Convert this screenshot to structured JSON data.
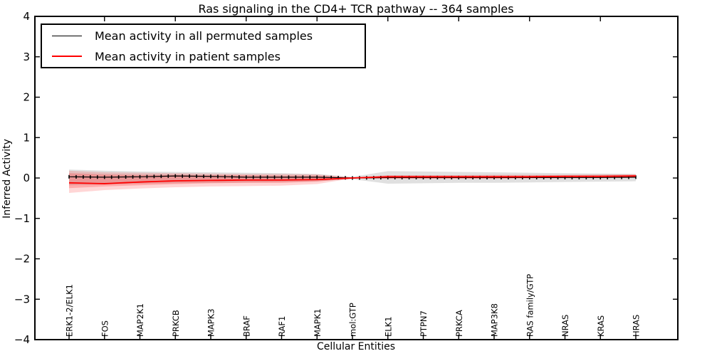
{
  "chart_data": {
    "type": "line",
    "title": "Ras signaling in the CD4+ TCR pathway -- 364 samples",
    "xlabel": "Cellular Entities",
    "ylabel": "Inferred Activity",
    "ylim": [
      -4,
      4
    ],
    "yticks": [
      4,
      3,
      2,
      1,
      0,
      -1,
      -2,
      -3,
      -4
    ],
    "grid": false,
    "n_points": 81,
    "label_every": 5,
    "categories": [
      "ERK1-2/ELK1",
      "FOS",
      "MAP2K1",
      "PRKCB",
      "MAPK3",
      "BRAF",
      "RAF1",
      "MAPK1",
      "mol:GTP",
      "ELK1",
      "PTPN7",
      "PRKCA",
      "MAP3K8",
      "RAS family/GTP",
      "NRAS",
      "KRAS",
      "HRAS"
    ],
    "series": [
      {
        "name": "Mean activity in all permuted samples",
        "color": "#000000",
        "marker": "vertical-dash",
        "values": [
          0.03,
          0.02,
          0.03,
          0.05,
          0.04,
          0.02,
          0.02,
          0.02,
          0.0,
          0.01,
          0.01,
          0.01,
          0.01,
          0.01,
          0.01,
          0.01,
          0.02
        ]
      },
      {
        "name": "Mean activity in patient samples",
        "color": "#ff0000",
        "marker": "none",
        "values": [
          -0.12,
          -0.14,
          -0.1,
          -0.07,
          -0.06,
          -0.05,
          -0.05,
          -0.04,
          0.0,
          0.03,
          0.03,
          0.03,
          0.03,
          0.03,
          0.04,
          0.04,
          0.05
        ]
      }
    ],
    "bands": [
      {
        "name": "permuted-samples-range",
        "color": "rgba(0,0,0,0.12)",
        "upper": [
          0.21,
          0.18,
          0.16,
          0.15,
          0.14,
          0.13,
          0.12,
          0.1,
          0.03,
          0.17,
          0.16,
          0.15,
          0.14,
          0.13,
          0.12,
          0.11,
          0.1
        ],
        "lower": [
          -0.18,
          -0.16,
          -0.14,
          -0.13,
          -0.12,
          -0.11,
          -0.1,
          -0.08,
          -0.03,
          -0.14,
          -0.13,
          -0.12,
          -0.12,
          -0.11,
          -0.1,
          -0.09,
          -0.08
        ]
      },
      {
        "name": "patient-samples-range-outer",
        "color": "rgba(255,0,0,0.16)",
        "upper": [
          0.18,
          0.14,
          0.13,
          0.12,
          0.11,
          0.1,
          0.1,
          0.09,
          0.01,
          0.07,
          0.07,
          0.07,
          0.08,
          0.08,
          0.08,
          0.09,
          0.09
        ],
        "lower": [
          -0.37,
          -0.3,
          -0.26,
          -0.23,
          -0.21,
          -0.2,
          -0.19,
          -0.15,
          -0.01,
          -0.02,
          -0.02,
          -0.02,
          -0.02,
          -0.01,
          -0.01,
          0.0,
          0.0
        ]
      },
      {
        "name": "patient-samples-range-inner",
        "color": "rgba(255,0,0,0.20)",
        "upper": [
          0.12,
          0.09,
          0.08,
          0.08,
          0.07,
          0.07,
          0.06,
          0.06,
          0.01,
          0.06,
          0.06,
          0.06,
          0.06,
          0.06,
          0.07,
          0.07,
          0.08
        ],
        "lower": [
          -0.25,
          -0.21,
          -0.18,
          -0.15,
          -0.13,
          -0.12,
          -0.12,
          -0.09,
          -0.01,
          -0.01,
          -0.01,
          -0.01,
          -0.01,
          0.0,
          0.0,
          0.01,
          0.01
        ]
      }
    ],
    "legend": {
      "position": "upper-left",
      "entries": [
        {
          "label": "Mean activity in all permuted samples",
          "color": "#000000"
        },
        {
          "label": "Mean activity in patient samples",
          "color": "#ff0000"
        }
      ]
    }
  }
}
